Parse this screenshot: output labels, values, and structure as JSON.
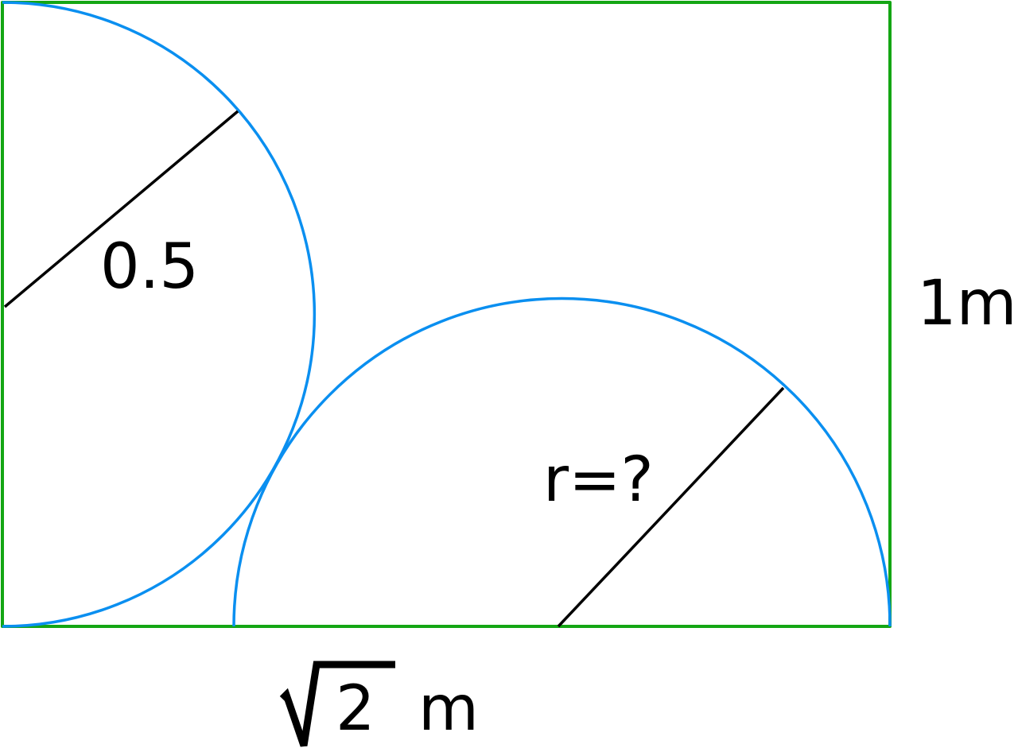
{
  "labels": {
    "left_radius": "0.5",
    "height": "1m",
    "unknown_radius": "r=?",
    "width_radicand": "2",
    "width_unit": "m"
  },
  "colors": {
    "rectangle": "#14a614",
    "arcs": "#0a8ff0",
    "radius_lines": "#000000"
  }
}
